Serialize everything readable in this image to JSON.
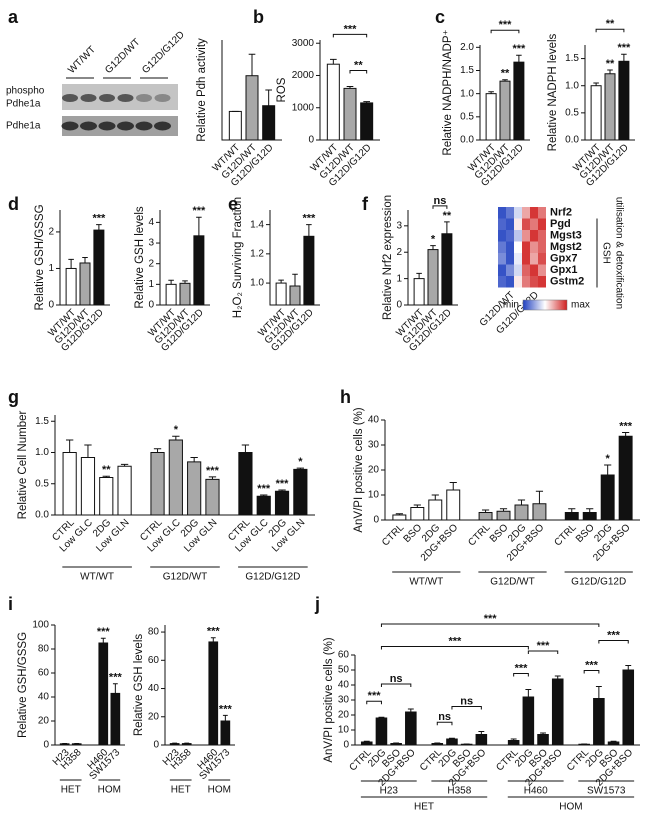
{
  "chart_data": [
    {
      "type": "bar",
      "panel": "a",
      "ylabel": "Relative Pdh activity",
      "ylim": [
        0,
        3.5
      ],
      "blot": {
        "lanes": [
          "WT/WT",
          "G12D/WT",
          "G12D/G12D"
        ],
        "bands": [
          [
            "phospho",
            "Pdhe1a"
          ],
          [
            "Pdhe1a"
          ]
        ]
      },
      "groups": [
        {
          "categories": [
            "WT/WT",
            "G12D/WT",
            "G12D/G12D"
          ],
          "values": [
            1.0,
            2.25,
            1.2
          ],
          "errors": [
            0,
            0.75,
            0.55
          ],
          "colors": [
            "#ffffff",
            "#a8a8a8",
            "#111111"
          ]
        }
      ]
    },
    {
      "type": "bar",
      "panel": "b",
      "ylabel": "ROS",
      "ylim": [
        0,
        3100
      ],
      "yticks": [
        0,
        1000,
        2000,
        3000
      ],
      "groups": [
        {
          "categories": [
            "WT/WT",
            "G12D/WT",
            "G12D/G12D"
          ],
          "values": [
            2350,
            1600,
            1150
          ],
          "errors": [
            150,
            60,
            40
          ],
          "colors": [
            "#ffffff",
            "#a8a8a8",
            "#111111"
          ]
        }
      ],
      "brackets": [
        "***",
        "**"
      ]
    },
    {
      "type": "bar",
      "panel": "c",
      "ylabel": "Relative NADPH/NADP⁺",
      "ylim": [
        0,
        2.05
      ],
      "yticks": [
        {
          "value": 0,
          "label": "0.0"
        },
        0.5,
        {
          "value": 1,
          "label": "1.0"
        },
        1.5,
        {
          "value": 2,
          "label": "2.0"
        }
      ],
      "groups": [
        {
          "categories": [
            "WT/WT",
            "G12D/WT",
            "G12D/G12D"
          ],
          "values": [
            1.0,
            1.27,
            1.68
          ],
          "errors": [
            0.04,
            0.03,
            0.15
          ],
          "colors": [
            "#ffffff",
            "#a8a8a8",
            "#111111"
          ],
          "sig": [
            null,
            "**",
            "***"
          ]
        }
      ],
      "brackets": [
        "***"
      ]
    },
    {
      "type": "bar",
      "ylabel": "Relative NADPH levels",
      "ylim": [
        0,
        1.75
      ],
      "yticks": [
        {
          "value": 0,
          "label": "0.0"
        },
        0.5,
        {
          "value": 1,
          "label": "1.0"
        },
        1.5
      ],
      "groups": [
        {
          "categories": [
            "WT/WT",
            "G12D/WT",
            "G12D/G12D"
          ],
          "values": [
            1.0,
            1.22,
            1.45
          ],
          "errors": [
            0.05,
            0.07,
            0.13
          ],
          "colors": [
            "#ffffff",
            "#a8a8a8",
            "#111111"
          ],
          "sig": [
            null,
            "**",
            "***"
          ]
        }
      ],
      "brackets": [
        "**"
      ]
    },
    {
      "type": "bar",
      "panel": "d",
      "ylabel": "Relative GSH/GSSG",
      "ylim": [
        0,
        2.6
      ],
      "yticks": [
        0,
        1,
        2
      ],
      "groups": [
        {
          "categories": [
            "WT/WT",
            "G12D/WT",
            "G12D/G12D"
          ],
          "values": [
            1.0,
            1.15,
            2.05
          ],
          "errors": [
            0.25,
            0.15,
            0.15
          ],
          "colors": [
            "#ffffff",
            "#a8a8a8",
            "#111111"
          ],
          "sig": [
            null,
            null,
            "***"
          ]
        }
      ]
    },
    {
      "type": "bar",
      "ylabel": "Relative GSH levels",
      "ylim": [
        0,
        4.6
      ],
      "yticks": [
        0,
        1,
        2,
        3,
        4
      ],
      "groups": [
        {
          "categories": [
            "WT/WT",
            "G12D/WT",
            "G12D/G12D"
          ],
          "values": [
            1.0,
            1.05,
            3.35
          ],
          "errors": [
            0.2,
            0.12,
            0.9
          ],
          "colors": [
            "#ffffff",
            "#a8a8a8",
            "#111111"
          ],
          "sig": [
            null,
            null,
            "***"
          ]
        }
      ]
    },
    {
      "type": "bar",
      "panel": "e",
      "ylabel": "H₂O₂ Surviving Fraction",
      "ylim": [
        0.85,
        1.5
      ],
      "yticks": [
        {
          "value": 1,
          "label": "1.0"
        },
        1.2,
        1.4
      ],
      "groups": [
        {
          "categories": [
            "WT/WT",
            "G12D/WT",
            "G12D/G12D"
          ],
          "values": [
            1.0,
            0.98,
            1.32
          ],
          "errors": [
            0.02,
            0.08,
            0.08
          ],
          "colors": [
            "#ffffff",
            "#a8a8a8",
            "#111111"
          ],
          "sig": [
            null,
            null,
            "***"
          ]
        }
      ]
    },
    {
      "type": "bar",
      "panel": "f",
      "ylabel": "Relative Nrf2 expression",
      "ylim": [
        0,
        3.6
      ],
      "yticks": [
        0,
        1,
        2,
        3
      ],
      "groups": [
        {
          "categories": [
            "WT/WT",
            "G12D/WT",
            "G12D/G12D"
          ],
          "values": [
            1.0,
            2.1,
            2.7
          ],
          "errors": [
            0.2,
            0.15,
            0.45
          ],
          "colors": [
            "#ffffff",
            "#a8a8a8",
            "#111111"
          ],
          "sig": [
            null,
            "*",
            "**"
          ]
        }
      ],
      "brackets": [
        "ns"
      ],
      "heatmap": {
        "columns": [
          "G12D/WT",
          "G12D/G12D"
        ],
        "rows": [
          "Nrf2",
          "Pgd",
          "Mgst3",
          "Mgst2",
          "Gpx7",
          "Gpx1",
          "Gstm2"
        ],
        "row_colors": [
          "#111111",
          "#d42020",
          "#d42020",
          "#d42020",
          "#d42020",
          "#d42020",
          "#d42020"
        ],
        "values": [
          [
            -0.9,
            -0.7,
            -0.2,
            0.4,
            0.9,
            0.6
          ],
          [
            -0.8,
            -0.9,
            0.1,
            0.8,
            0.6,
            0.9
          ],
          [
            -0.9,
            -0.8,
            -0.3,
            0.5,
            0.9,
            0.7
          ],
          [
            -0.7,
            -0.9,
            0.0,
            0.9,
            0.5,
            0.7
          ],
          [
            -0.6,
            -0.9,
            -0.1,
            0.9,
            0.4,
            0.8
          ],
          [
            -0.9,
            -0.6,
            -0.2,
            0.7,
            0.9,
            0.5
          ],
          [
            -0.8,
            -0.9,
            0.1,
            0.6,
            0.8,
            0.9
          ]
        ],
        "scale": [
          "min",
          "max"
        ],
        "bracket": [
          "GSH",
          "utilisation & detoxification"
        ]
      }
    },
    {
      "type": "bar",
      "panel": "g",
      "ylabel": "Relative Cell Number",
      "ylim": [
        0,
        1.6
      ],
      "yticks": [
        {
          "value": 0,
          "label": "0.0"
        },
        0.5,
        {
          "value": 1,
          "label": "1.0"
        },
        1.5
      ],
      "groups": [
        {
          "label": "WT/WT",
          "categories": [
            "CTRL",
            "Low GLC",
            "2DG",
            "Low GLN"
          ],
          "values": [
            1.0,
            0.92,
            0.6,
            0.78
          ],
          "errors": [
            0.2,
            0.2,
            0.02,
            0.03
          ],
          "color": "#ffffff",
          "sig": [
            null,
            null,
            "**",
            null
          ]
        },
        {
          "label": "G12D/WT",
          "categories": [
            "CTRL",
            "Low GLC",
            "2DG",
            "Low GLN"
          ],
          "values": [
            1.0,
            1.2,
            0.85,
            0.57
          ],
          "errors": [
            0.06,
            0.06,
            0.07,
            0.04
          ],
          "color": "#a8a8a8",
          "sig": [
            null,
            "*",
            null,
            "***"
          ]
        },
        {
          "label": "G12D/G12D",
          "categories": [
            "CTRL",
            "Low GLC",
            "2DG",
            "Low GLN"
          ],
          "values": [
            1.0,
            0.3,
            0.38,
            0.73
          ],
          "errors": [
            0.12,
            0.02,
            0.02,
            0.02
          ],
          "color": "#111111",
          "sig": [
            null,
            "***",
            "***",
            "*"
          ]
        }
      ]
    },
    {
      "type": "bar",
      "panel": "h",
      "ylabel": "AnV/PI positive cells (%)",
      "ylim": [
        0,
        40
      ],
      "yticks": [
        0,
        10,
        20,
        30,
        40
      ],
      "groups": [
        {
          "label": "WT/WT",
          "categories": [
            "CTRL",
            "BSO",
            "2DG",
            "2DG+BSO"
          ],
          "values": [
            2,
            5,
            8,
            12
          ],
          "errors": [
            0.5,
            1,
            2,
            3
          ],
          "color": "#ffffff"
        },
        {
          "label": "G12D/WT",
          "categories": [
            "CTRL",
            "BSO",
            "2DG",
            "2DG+BSO"
          ],
          "values": [
            3,
            3.5,
            6,
            6.5
          ],
          "errors": [
            1,
            1,
            2,
            5
          ],
          "color": "#a8a8a8"
        },
        {
          "label": "G12D/G12D",
          "categories": [
            "CTRL",
            "BSO",
            "2DG",
            "2DG+BSO"
          ],
          "values": [
            3,
            3,
            18,
            33.5
          ],
          "errors": [
            1.5,
            1.5,
            4,
            1.5
          ],
          "color": "#111111",
          "sig": [
            null,
            null,
            "*",
            "***"
          ]
        }
      ]
    },
    {
      "type": "bar",
      "panel": "i",
      "ylabel": "Relative GSH/GSSG",
      "ylim": [
        0,
        100
      ],
      "yticks": [
        0,
        20,
        40,
        60,
        80,
        100
      ],
      "sections": [
        {
          "label": "HET",
          "groups": [
            {
              "categories": [
                "H23",
                "H358"
              ],
              "values": [
                1,
                1
              ],
              "errors": [
                0.3,
                0.3
              ],
              "color": "#111111"
            }
          ]
        },
        {
          "label": "HOM",
          "groups": [
            {
              "categories": [
                "H460",
                "SW1573"
              ],
              "values": [
                85,
                43
              ],
              "errors": [
                4,
                8
              ],
              "color": "#111111",
              "sig": [
                "***",
                "***"
              ]
            }
          ]
        }
      ]
    },
    {
      "type": "bar",
      "ylabel": "Relative GSH levels",
      "ylim": [
        0,
        85
      ],
      "yticks": [
        0,
        20,
        40,
        60,
        80
      ],
      "sections": [
        {
          "label": "HET",
          "groups": [
            {
              "categories": [
                "H23",
                "H358"
              ],
              "values": [
                1,
                1
              ],
              "errors": [
                0.3,
                0.3
              ],
              "color": "#111111"
            }
          ]
        },
        {
          "label": "HOM",
          "groups": [
            {
              "categories": [
                "H460",
                "SW1573"
              ],
              "values": [
                73,
                17
              ],
              "errors": [
                3,
                4
              ],
              "color": "#111111",
              "sig": [
                "***",
                "***"
              ]
            }
          ]
        }
      ]
    },
    {
      "type": "bar",
      "panel": "j",
      "ylabel": "AnV/PI positive cells (%)",
      "ylim": [
        0,
        60
      ],
      "yticks": [
        0,
        10,
        20,
        30,
        40,
        50,
        60
      ],
      "sections": [
        {
          "label": "HET",
          "groups": [
            {
              "label": "H23",
              "categories": [
                "CTRL",
                "2DG",
                "BSO",
                "2DG+BSO"
              ],
              "values": [
                2,
                18,
                1,
                22
              ],
              "errors": [
                0.5,
                0.5,
                0.3,
                2
              ],
              "color": "#111111"
            },
            {
              "label": "H358",
              "categories": [
                "CTRL",
                "2DG",
                "BSO",
                "2DG+BSO"
              ],
              "values": [
                1,
                4,
                0.5,
                7
              ],
              "errors": [
                0.3,
                0.5,
                0.2,
                2
              ],
              "color": "#111111"
            }
          ]
        },
        {
          "label": "HOM",
          "groups": [
            {
              "label": "H460",
              "categories": [
                "CTRL",
                "2DG",
                "BSO",
                "2DG+BSO"
              ],
              "values": [
                3,
                32,
                7,
                44
              ],
              "errors": [
                1,
                5,
                1,
                2
              ],
              "color": "#111111"
            },
            {
              "label": "SW1573",
              "categories": [
                "CTRL",
                "2DG",
                "BSO",
                "2DG+BSO"
              ],
              "values": [
                0.5,
                31,
                2,
                50
              ],
              "errors": [
                0.2,
                8,
                0.5,
                3
              ],
              "color": "#111111"
            }
          ]
        }
      ],
      "brackets": [
        "***",
        "ns",
        "ns",
        "ns",
        "***",
        "***",
        "***",
        "***",
        "***",
        "***"
      ]
    }
  ]
}
